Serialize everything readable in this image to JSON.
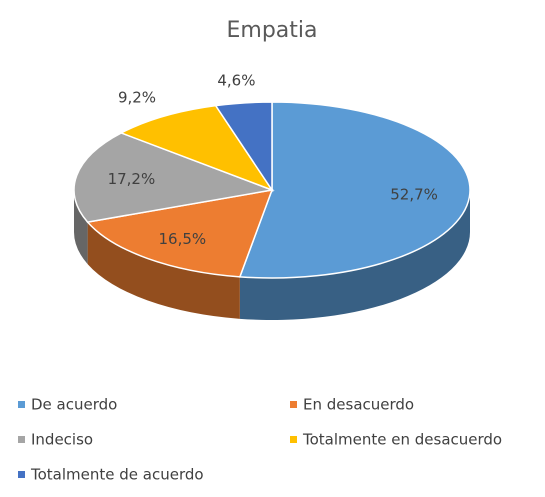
{
  "chart_data": {
    "type": "pie",
    "title": "Empatia",
    "categories": [
      "De acuerdo",
      "En desacuerdo",
      "Indeciso",
      "Totalmente en desacuerdo",
      "Totalmente de acuerdo"
    ],
    "values": [
      52.7,
      16.5,
      17.2,
      9.2,
      4.6
    ],
    "value_labels": [
      "52,7%",
      "16,5%",
      "17,2%",
      "9,2%",
      "4,6%"
    ],
    "colors": [
      "#5b9bd5",
      "#ed7d31",
      "#a5a5a5",
      "#ffc000",
      "#4472c4"
    ],
    "legend": "bottom"
  }
}
